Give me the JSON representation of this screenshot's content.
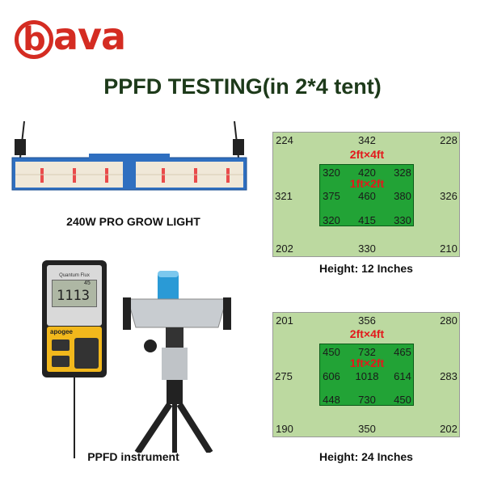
{
  "logo": {
    "text": "bava",
    "color": "#d42c22"
  },
  "title": "PPFD TESTING(in 2*4 tent)",
  "grow_light": {
    "caption": "240W PRO GROW LIGHT"
  },
  "instrument": {
    "caption": "PPFD instrument",
    "meter_reading": "1113",
    "meter_small": "45",
    "meter_brand": "apogee",
    "meter_label": "Quantum Flux"
  },
  "tests": [
    {
      "caption": "Height: 12 Inches",
      "outer_label": "2ft×4ft",
      "inner_label": "1ft×2ft",
      "outer": {
        "top": [
          "224",
          "342",
          "228"
        ],
        "middle": [
          "321",
          "326"
        ],
        "bottom": [
          "202",
          "330",
          "210"
        ]
      },
      "inner": [
        [
          "320",
          "420",
          "328"
        ],
        [
          "375",
          "460",
          "380"
        ],
        [
          "320",
          "415",
          "330"
        ]
      ]
    },
    {
      "caption": "Height: 24 Inches",
      "outer_label": "2ft×4ft",
      "inner_label": "1ft×2ft",
      "outer": {
        "top": [
          "201",
          "356",
          "280"
        ],
        "middle": [
          "275",
          "283"
        ],
        "bottom": [
          "190",
          "350",
          "202"
        ]
      },
      "inner": [
        [
          "450",
          "732",
          "465"
        ],
        [
          "606",
          "1018",
          "614"
        ],
        [
          "448",
          "730",
          "450"
        ]
      ]
    }
  ],
  "colors": {
    "outer_zone": "#bcd9a0",
    "inner_zone": "#22a336",
    "label_red": "#e3191c"
  }
}
